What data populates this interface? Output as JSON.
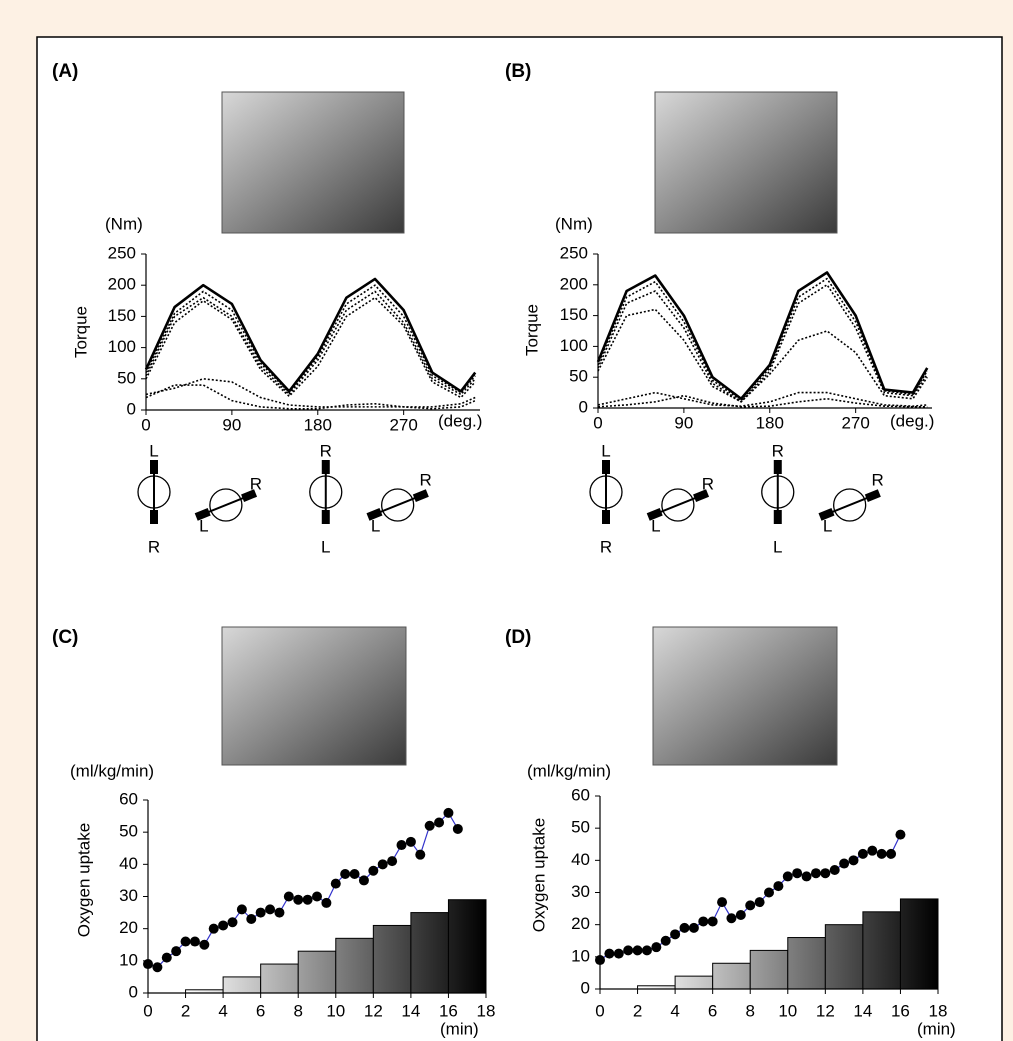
{
  "chart_data": [
    {
      "type": "line",
      "panel_label": "(A)",
      "y_label": "Torque",
      "y_unit": "(Nm)",
      "x_unit": "(deg.)",
      "x": [
        0,
        30,
        60,
        90,
        120,
        150,
        180,
        210,
        240,
        270,
        300,
        330,
        345
      ],
      "xlim": [
        0,
        350
      ],
      "xticks": [
        0,
        90,
        180,
        270
      ],
      "ylim": [
        0,
        250
      ],
      "yticks": [
        0,
        50,
        100,
        150,
        200,
        250
      ],
      "series": [
        {
          "color": "#000000",
          "line_style": "solid",
          "values": [
            65,
            165,
            200,
            170,
            80,
            30,
            90,
            180,
            210,
            160,
            60,
            30,
            60
          ]
        },
        {
          "color": "#000000",
          "line_style": "dotted",
          "values": [
            60,
            155,
            190,
            160,
            75,
            28,
            85,
            170,
            200,
            150,
            55,
            28,
            55
          ]
        },
        {
          "color": "#000000",
          "line_style": "dotted",
          "values": [
            55,
            150,
            180,
            150,
            70,
            25,
            80,
            160,
            190,
            140,
            50,
            25,
            50
          ]
        },
        {
          "color": "#000000",
          "line_style": "dotted",
          "values": [
            50,
            140,
            175,
            145,
            65,
            22,
            70,
            150,
            180,
            135,
            45,
            20,
            45
          ]
        },
        {
          "color": "#000000",
          "line_style": "dotted",
          "values": [
            25,
            35,
            50,
            45,
            20,
            8,
            5,
            5,
            5,
            5,
            5,
            10,
            20
          ]
        },
        {
          "color": "#000000",
          "line_style": "dotted",
          "values": [
            20,
            40,
            40,
            15,
            5,
            2,
            2,
            8,
            10,
            5,
            2,
            5,
            15
          ]
        }
      ],
      "crank_labels": [
        "L",
        "R",
        "L",
        "R",
        "R",
        "L",
        "L",
        "R"
      ]
    },
    {
      "type": "line",
      "panel_label": "(B)",
      "y_label": "Torque",
      "y_unit": "(Nm)",
      "x_unit": "(deg.)",
      "x": [
        0,
        30,
        60,
        90,
        120,
        150,
        180,
        210,
        240,
        270,
        300,
        330,
        345
      ],
      "xlim": [
        0,
        350
      ],
      "xticks": [
        0,
        90,
        180,
        270
      ],
      "ylim": [
        0,
        250
      ],
      "yticks": [
        0,
        50,
        100,
        150,
        200,
        250
      ],
      "series": [
        {
          "color": "#000000",
          "line_style": "solid",
          "values": [
            75,
            190,
            215,
            150,
            50,
            15,
            70,
            190,
            220,
            150,
            30,
            25,
            65
          ]
        },
        {
          "color": "#000000",
          "line_style": "dotted",
          "values": [
            70,
            180,
            205,
            140,
            45,
            12,
            65,
            180,
            210,
            140,
            28,
            22,
            60
          ]
        },
        {
          "color": "#000000",
          "line_style": "dotted",
          "values": [
            65,
            170,
            190,
            130,
            40,
            10,
            60,
            170,
            200,
            130,
            25,
            20,
            55
          ]
        },
        {
          "color": "#000000",
          "line_style": "dotted",
          "values": [
            60,
            150,
            160,
            110,
            35,
            10,
            55,
            110,
            125,
            90,
            20,
            15,
            50
          ]
        },
        {
          "color": "#000000",
          "line_style": "dotted",
          "values": [
            5,
            15,
            25,
            15,
            5,
            3,
            10,
            25,
            25,
            15,
            5,
            3,
            5
          ]
        },
        {
          "color": "#000000",
          "line_style": "dotted",
          "values": [
            2,
            5,
            10,
            20,
            8,
            2,
            3,
            10,
            15,
            8,
            3,
            2,
            2
          ]
        }
      ],
      "crank_labels": [
        "L",
        "R",
        "L",
        "R",
        "R",
        "L",
        "L",
        "R"
      ]
    },
    {
      "type": "scatter",
      "panel_label": "(C)",
      "y_label": "Oxygen uptake",
      "y_unit": "(ml/kg/min)",
      "x_unit": "(min)",
      "x": [
        0,
        0.5,
        1,
        1.5,
        2,
        2.5,
        3,
        3.5,
        4,
        4.5,
        5,
        5.5,
        6,
        6.5,
        7,
        7.5,
        8,
        8.5,
        9,
        9.5,
        10,
        10.5,
        11,
        11.5,
        12,
        12.5,
        13,
        13.5,
        14,
        14.5,
        15,
        15.5,
        16,
        16.5
      ],
      "xlim": [
        0,
        18
      ],
      "xticks": [
        0,
        2,
        4,
        6,
        8,
        10,
        12,
        14,
        16,
        18
      ],
      "ylim": [
        0,
        60
      ],
      "yticks": [
        0,
        10,
        20,
        30,
        40,
        50,
        60
      ],
      "series": [
        {
          "color": "#000000",
          "line_color": "#3333cc",
          "values": [
            9,
            8,
            11,
            13,
            16,
            16,
            15,
            20,
            21,
            22,
            26,
            23,
            25,
            26,
            25,
            30,
            29,
            29,
            30,
            28,
            34,
            37,
            37,
            35,
            38,
            40,
            41,
            46,
            47,
            43,
            52,
            53,
            56,
            51
          ]
        }
      ],
      "load_steps": {
        "x": [
          2,
          4,
          6,
          8,
          10,
          12,
          14,
          16,
          18
        ],
        "levels": [
          1,
          5,
          9,
          13,
          17,
          21,
          25,
          29
        ]
      }
    },
    {
      "type": "scatter",
      "panel_label": "(D)",
      "y_label": "Oxygen uptake",
      "y_unit": "(ml/kg/min)",
      "x_unit": "(min)",
      "x": [
        0,
        0.5,
        1,
        1.5,
        2,
        2.5,
        3,
        3.5,
        4,
        4.5,
        5,
        5.5,
        6,
        6.5,
        7,
        7.5,
        8,
        8.5,
        9,
        9.5,
        10,
        10.5,
        11,
        11.5,
        12,
        12.5,
        13,
        13.5,
        14,
        14.5,
        15,
        15.5,
        16
      ],
      "xlim": [
        0,
        18
      ],
      "xticks": [
        0,
        2,
        4,
        6,
        8,
        10,
        12,
        14,
        16,
        18
      ],
      "ylim": [
        0,
        60
      ],
      "yticks": [
        0,
        10,
        20,
        30,
        40,
        50,
        60
      ],
      "series": [
        {
          "color": "#000000",
          "line_color": "#3333cc",
          "values": [
            9,
            11,
            11,
            12,
            12,
            12,
            13,
            15,
            17,
            19,
            19,
            21,
            21,
            27,
            22,
            23,
            26,
            27,
            30,
            32,
            35,
            36,
            35,
            36,
            36,
            37,
            39,
            40,
            42,
            43,
            42,
            42,
            48
          ]
        }
      ],
      "load_steps": {
        "x": [
          2,
          4,
          6,
          8,
          10,
          12,
          14,
          16,
          18
        ],
        "levels": [
          1,
          4,
          8,
          12,
          16,
          20,
          24,
          28
        ]
      }
    }
  ]
}
